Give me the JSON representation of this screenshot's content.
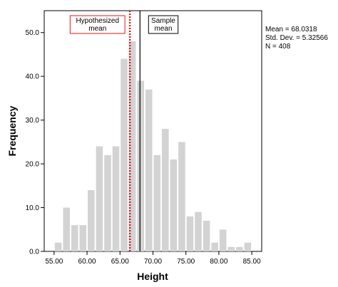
{
  "chart_data": {
    "type": "bar",
    "subtype": "histogram",
    "xlabel": "Height",
    "ylabel": "Frequency",
    "xlim": [
      53.5,
      86.5
    ],
    "ylim": [
      0,
      55
    ],
    "xticks": [
      "55.00",
      "60.00",
      "65.00",
      "70.00",
      "75.00",
      "80.00",
      "85.00"
    ],
    "xtick_values": [
      55,
      60,
      65,
      70,
      75,
      80,
      85
    ],
    "yticks": [
      "0.0",
      "10.0",
      "20.0",
      "30.0",
      "40.0",
      "50.0"
    ],
    "ytick_values": [
      0,
      10,
      20,
      30,
      40,
      50
    ],
    "bin_width": 1.25,
    "bins": [
      {
        "x0": 55.0,
        "count": 2
      },
      {
        "x0": 56.25,
        "count": 10
      },
      {
        "x0": 57.5,
        "count": 6
      },
      {
        "x0": 58.75,
        "count": 6
      },
      {
        "x0": 60.0,
        "count": 14
      },
      {
        "x0": 61.25,
        "count": 24
      },
      {
        "x0": 62.5,
        "count": 22
      },
      {
        "x0": 63.75,
        "count": 24
      },
      {
        "x0": 65.0,
        "count": 44
      },
      {
        "x0": 66.25,
        "count": 48
      },
      {
        "x0": 67.5,
        "count": 39
      },
      {
        "x0": 68.75,
        "count": 37
      },
      {
        "x0": 70.0,
        "count": 22
      },
      {
        "x0": 71.25,
        "count": 28
      },
      {
        "x0": 72.5,
        "count": 21
      },
      {
        "x0": 73.75,
        "count": 25
      },
      {
        "x0": 75.0,
        "count": 8
      },
      {
        "x0": 76.25,
        "count": 9
      },
      {
        "x0": 77.5,
        "count": 7
      },
      {
        "x0": 78.75,
        "count": 2
      },
      {
        "x0": 80.0,
        "count": 5
      },
      {
        "x0": 81.25,
        "count": 1
      },
      {
        "x0": 82.5,
        "count": 1
      },
      {
        "x0": 83.75,
        "count": 2
      }
    ],
    "bar_color": "#d3d3d3",
    "reference_lines": [
      {
        "name": "hypothesized",
        "x": 66.5,
        "color": "#e8141b",
        "style": "dotted",
        "label_lines": [
          "Hypothesized",
          "mean"
        ],
        "label_border": "#e8141b"
      },
      {
        "name": "sample",
        "x": 68.0318,
        "color": "#000000",
        "style": "solid",
        "label_lines": [
          "Sample",
          "mean"
        ],
        "label_border": "#000000"
      }
    ],
    "stats": {
      "mean": "Mean = 68.0318",
      "std": "Std. Dev. = 5.32566",
      "n": "N = 408"
    },
    "grid": false,
    "legend": "none"
  }
}
